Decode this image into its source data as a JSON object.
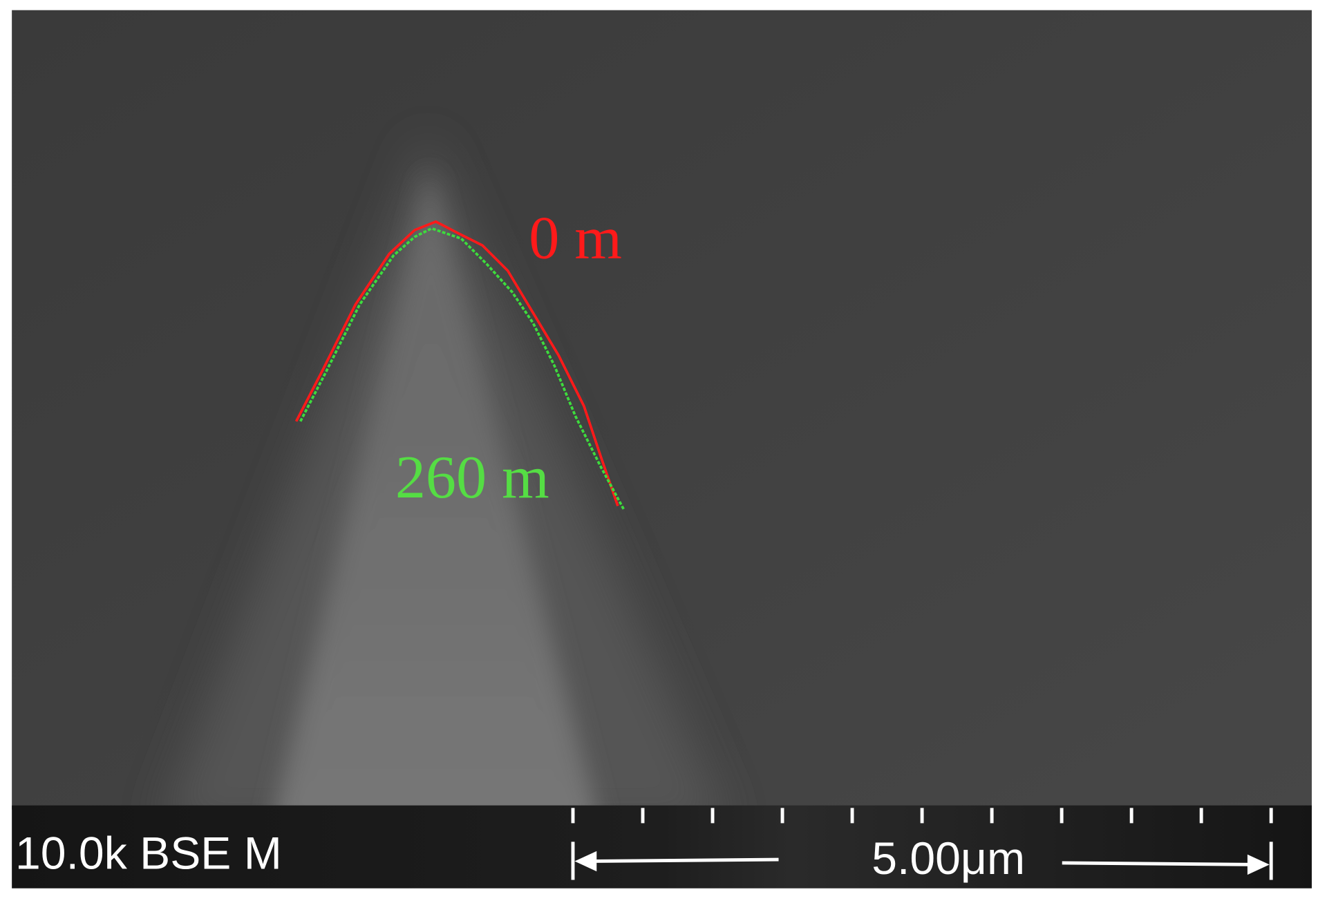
{
  "annotations": {
    "top_profile": "0 m",
    "bottom_profile": "260 m"
  },
  "info_bar": {
    "label": "10.0k BSE M",
    "scale": "5.00μm"
  }
}
